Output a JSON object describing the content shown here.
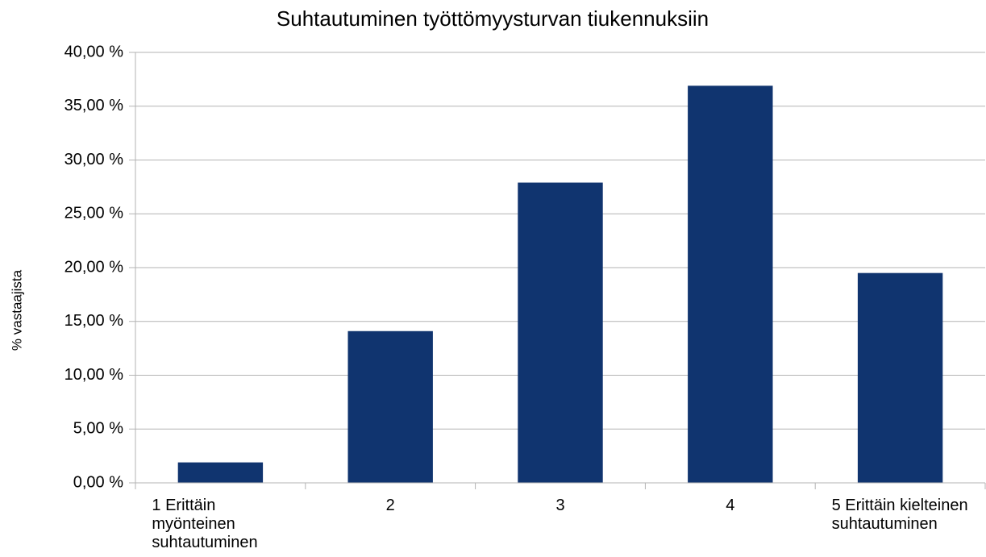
{
  "chart_data": {
    "type": "bar",
    "title": "Suhtautuminen työttömyysturvan tiukennuksiin",
    "y_label": "% vastaajista",
    "categories": [
      "1 Erittäin myönteinen suhtautuminen",
      "2",
      "3",
      "4",
      "5 Erittäin kielteinen suhtautuminen"
    ],
    "values": [
      1.9,
      14.1,
      27.9,
      36.9,
      19.5
    ],
    "color": "#10346f",
    "ylim": [
      0,
      40
    ],
    "yticks": [
      {
        "value": 0,
        "label": "0,00 %"
      },
      {
        "value": 5,
        "label": "5,00 %"
      },
      {
        "value": 10,
        "label": "10,00 %"
      },
      {
        "value": 15,
        "label": "15,00 %"
      },
      {
        "value": 20,
        "label": "20,00 %"
      },
      {
        "value": 25,
        "label": "25,00 %"
      },
      {
        "value": 30,
        "label": "30,00 %"
      },
      {
        "value": 35,
        "label": "35,00 %"
      },
      {
        "value": 40,
        "label": "40,00 %"
      }
    ],
    "grid": true
  }
}
